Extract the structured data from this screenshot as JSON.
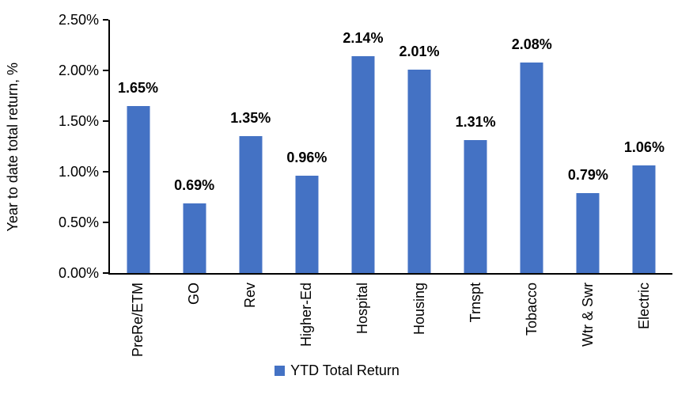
{
  "chart_data": {
    "type": "bar",
    "title": "",
    "categories": [
      "PreRe/ETM",
      "GO",
      "Rev",
      "Higher-Ed",
      "Hospital",
      "Housing",
      "Trnspt",
      "Tobacco",
      "Wtr & Swr",
      "Electric"
    ],
    "values": [
      1.65,
      0.69,
      1.35,
      0.96,
      2.14,
      2.01,
      1.31,
      2.08,
      0.79,
      1.06
    ],
    "value_labels": [
      "1.65%",
      "0.69%",
      "1.35%",
      "0.96%",
      "2.14%",
      "2.01%",
      "1.31%",
      "2.08%",
      "0.79%",
      "1.06%"
    ],
    "xlabel": "",
    "ylabel": "Year to date total return, %",
    "ylim": [
      0,
      2.5
    ],
    "y_ticks": [
      "0.00%",
      "0.50%",
      "1.00%",
      "1.50%",
      "2.00%",
      "2.50%"
    ],
    "grid": false,
    "legend_position": "bottom",
    "legend_entries": [
      "YTD Total Return"
    ],
    "bar_color": "#4472C4",
    "axis_color": "#000000",
    "text_color": "#000000"
  }
}
